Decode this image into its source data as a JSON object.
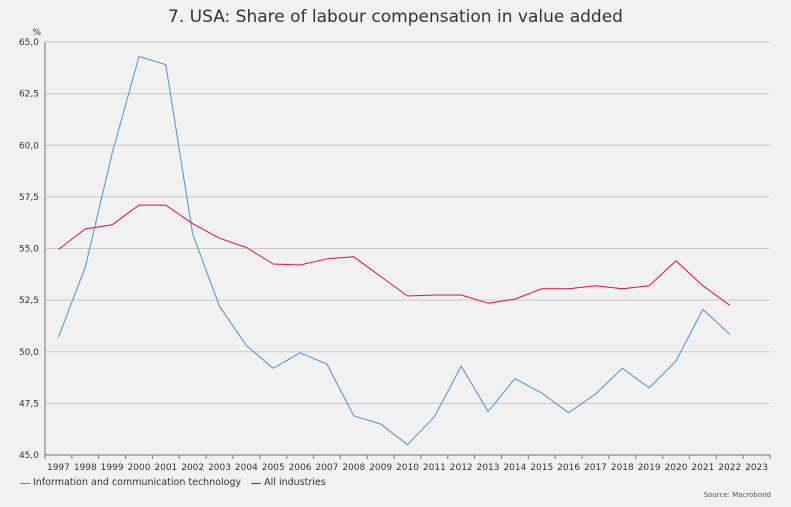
{
  "chart_data": {
    "type": "line",
    "title": "7. USA: Share of labour compensation in value added",
    "ylabel": "%",
    "ylim": [
      45,
      65
    ],
    "yticks": [
      "45,0",
      "47,5",
      "50,0",
      "52,5",
      "55,0",
      "57,5",
      "60,0",
      "62,5",
      "65,0"
    ],
    "x": [
      "1997",
      "1998",
      "1999",
      "2000",
      "2001",
      "2002",
      "2003",
      "2004",
      "2005",
      "2006",
      "2007",
      "2008",
      "2009",
      "2010",
      "2011",
      "2012",
      "2013",
      "2014",
      "2015",
      "2016",
      "2017",
      "2018",
      "2019",
      "2020",
      "2021",
      "2022",
      "2023"
    ],
    "series": [
      {
        "name": "Information and communication technology",
        "color": "#4a90d9",
        "values": [
          50.7,
          54.1,
          59.6,
          64.3,
          63.9,
          55.7,
          52.2,
          50.3,
          49.2,
          49.95,
          49.4,
          46.9,
          46.5,
          45.5,
          46.85,
          49.3,
          47.1,
          48.7,
          48.0,
          47.05,
          47.95,
          49.2,
          48.25,
          49.55,
          52.05,
          50.85,
          null
        ]
      },
      {
        "name": "All industries",
        "color": "#d9152b",
        "values": [
          54.95,
          55.95,
          56.15,
          57.1,
          57.1,
          56.2,
          55.5,
          55.05,
          54.25,
          54.2,
          54.5,
          54.6,
          53.65,
          52.7,
          52.75,
          52.75,
          52.35,
          52.55,
          53.05,
          53.05,
          53.2,
          53.05,
          53.2,
          54.4,
          53.2,
          52.25,
          null
        ]
      }
    ],
    "grid": true,
    "legend": "bottom-left",
    "source": "Source: Macrobond"
  }
}
